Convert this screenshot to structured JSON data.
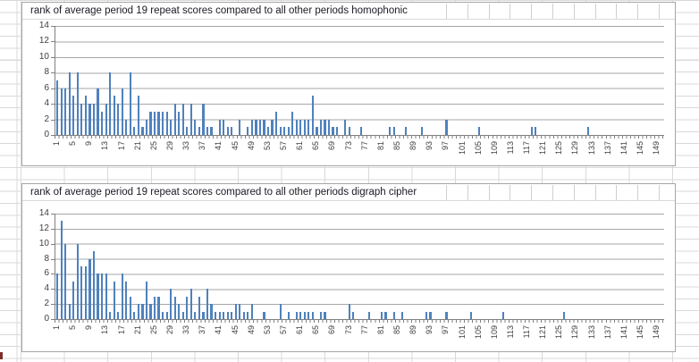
{
  "chart_data": [
    {
      "type": "bar",
      "title": "rank of average period 19 repeat scores compared to all other periods homophonic",
      "bar_color": "#4f81bd",
      "ylim": [
        0,
        14
      ],
      "y_tick_labels": [
        0,
        2,
        4,
        6,
        8,
        10,
        12,
        14
      ],
      "x_range": [
        1,
        150
      ],
      "x_tick_step": 4,
      "x_tick_labels": [
        1,
        5,
        9,
        13,
        17,
        21,
        25,
        29,
        33,
        37,
        41,
        45,
        49,
        53,
        57,
        61,
        65,
        69,
        73,
        77,
        81,
        85,
        89,
        93,
        97,
        101,
        105,
        109,
        113,
        117,
        121,
        125,
        129,
        133,
        137,
        141,
        145,
        149
      ],
      "grid": true,
      "legend": "none",
      "values": [
        7,
        6,
        6,
        8,
        5,
        8,
        4,
        5,
        4,
        4,
        6,
        3,
        4,
        8,
        5,
        4,
        6,
        2,
        8,
        1,
        5,
        1,
        2,
        3,
        3,
        3,
        3,
        3,
        2,
        4,
        3,
        4,
        1,
        4,
        2,
        1,
        4,
        1,
        1,
        0,
        2,
        2,
        1,
        1,
        0,
        2,
        0,
        1,
        2,
        2,
        2,
        2,
        1,
        2,
        3,
        1,
        1,
        1,
        3,
        2,
        2,
        2,
        2,
        5,
        1,
        2,
        2,
        2,
        1,
        1,
        0,
        2,
        1,
        0,
        0,
        1,
        0,
        0,
        0,
        0,
        0,
        0,
        1,
        1,
        0,
        0,
        1,
        0,
        0,
        0,
        1,
        0,
        0,
        0,
        0,
        0,
        2,
        0,
        0,
        0,
        0,
        0,
        0,
        0,
        1,
        0,
        0,
        0,
        0,
        0,
        0,
        0,
        0,
        0,
        0,
        0,
        0,
        1,
        1,
        0,
        0,
        0,
        0,
        0,
        0,
        0,
        0,
        0,
        0,
        0,
        0,
        1,
        0,
        0,
        0,
        0,
        0,
        0,
        0,
        0,
        0,
        0,
        0,
        0,
        0,
        0,
        0,
        0,
        0,
        0
      ]
    },
    {
      "type": "bar",
      "title": "rank of average period 19 repeat scores compared to all other periods digraph cipher",
      "bar_color": "#4f81bd",
      "ylim": [
        0,
        14
      ],
      "y_tick_labels": [
        0,
        2,
        4,
        6,
        8,
        10,
        12,
        14
      ],
      "x_range": [
        1,
        150
      ],
      "x_tick_step": 4,
      "x_tick_labels": [
        1,
        5,
        9,
        13,
        17,
        21,
        25,
        29,
        33,
        37,
        41,
        45,
        49,
        53,
        57,
        61,
        65,
        69,
        73,
        77,
        81,
        85,
        89,
        93,
        97,
        101,
        105,
        109,
        113,
        117,
        121,
        125,
        129,
        133,
        137,
        141,
        145,
        149
      ],
      "grid": true,
      "legend": "none",
      "values": [
        6,
        13,
        10,
        2,
        5,
        10,
        7,
        7,
        8,
        9,
        6,
        6,
        6,
        1,
        5,
        1,
        6,
        5,
        3,
        1,
        2,
        2,
        5,
        2,
        3,
        3,
        1,
        1,
        4,
        3,
        2,
        1,
        3,
        4,
        1,
        3,
        1,
        4,
        2,
        1,
        1,
        1,
        1,
        1,
        2,
        2,
        1,
        1,
        2,
        0,
        0,
        1,
        0,
        0,
        0,
        2,
        0,
        1,
        0,
        1,
        1,
        1,
        1,
        1,
        0,
        1,
        1,
        0,
        0,
        0,
        0,
        0,
        2,
        1,
        0,
        0,
        0,
        1,
        0,
        0,
        1,
        1,
        0,
        1,
        0,
        1,
        0,
        0,
        0,
        0,
        0,
        1,
        1,
        0,
        0,
        0,
        1,
        0,
        0,
        0,
        0,
        0,
        1,
        0,
        0,
        0,
        0,
        0,
        0,
        0,
        1,
        0,
        0,
        0,
        0,
        0,
        0,
        0,
        0,
        0,
        0,
        0,
        0,
        0,
        0,
        1,
        0,
        0,
        0,
        0,
        0,
        0,
        0,
        0,
        0,
        0,
        0,
        0,
        0,
        0,
        0,
        0,
        0,
        0,
        0,
        0,
        0,
        0,
        0,
        0
      ]
    }
  ],
  "colors": {
    "bar": "#4f81bd",
    "gridline": "#a6a6a6",
    "axis": "#808080",
    "sheet_gridline": "#d9d9d9"
  }
}
